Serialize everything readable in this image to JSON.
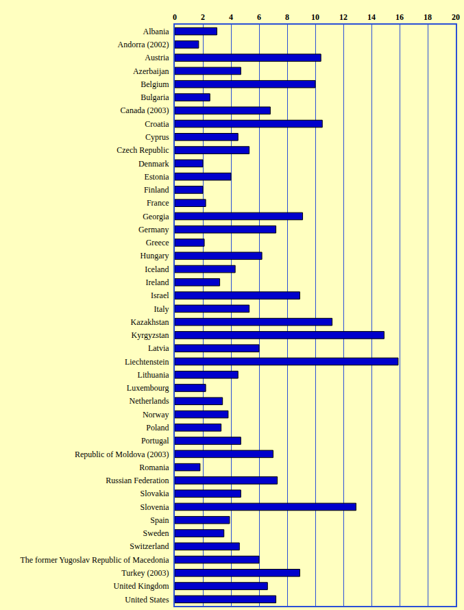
{
  "chart_data": {
    "type": "bar",
    "orientation": "horizontal",
    "grid": true,
    "color": "#0000cc",
    "categories": [
      "Albania",
      "Andorra (2002)",
      "Austria",
      "Azerbaijan",
      "Belgium",
      "Bulgaria",
      "Canada (2003)",
      "Croatia",
      "Cyprus",
      "Czech Republic",
      "Denmark",
      "Estonia",
      "Finland",
      "France",
      "Georgia",
      "Germany",
      "Greece",
      "Hungary",
      "Iceland",
      "Ireland",
      "Israel",
      "Italy",
      "Kazakhstan",
      "Kyrgyzstan",
      "Latvia",
      "Liechtenstein",
      "Lithuania",
      "Luxembourg",
      "Netherlands",
      "Norway",
      "Poland",
      "Portugal",
      "Republic of Moldova (2003)",
      "Romania",
      "Russian Federation",
      "Slovakia",
      "Slovenia",
      "Spain",
      "Sweden",
      "Switzerland",
      "The former Yugoslav Republic of Macedonia",
      "Turkey (2003)",
      "United Kingdom",
      "United States"
    ],
    "values": [
      3.0,
      1.7,
      10.4,
      4.7,
      10.0,
      2.5,
      6.8,
      10.5,
      4.5,
      5.3,
      2.0,
      4.0,
      2.0,
      2.2,
      9.1,
      7.2,
      2.1,
      6.2,
      4.3,
      3.2,
      8.9,
      5.3,
      11.2,
      14.9,
      6.0,
      15.9,
      4.5,
      2.2,
      3.4,
      3.8,
      3.3,
      4.7,
      7.0,
      1.8,
      7.3,
      4.7,
      12.9,
      3.9,
      3.5,
      4.6,
      6.0,
      8.9,
      6.6,
      7.2
    ],
    "xlim": [
      0,
      20
    ],
    "xticks": [
      0,
      2,
      4,
      6,
      8,
      10,
      12,
      14,
      16,
      18,
      20
    ]
  }
}
